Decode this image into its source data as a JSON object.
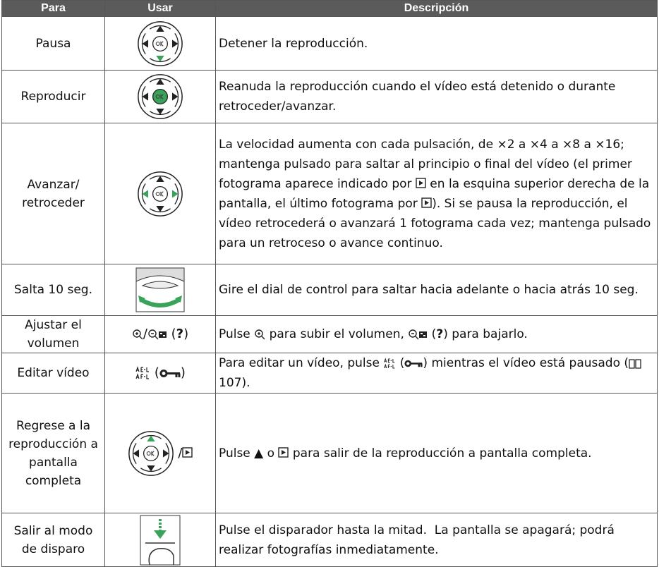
{
  "table": {
    "headers": [
      "Para",
      "Usar",
      "Descripción"
    ],
    "rows": [
      {
        "para": "Pausa",
        "description": [
          "Detener la reproducción."
        ]
      },
      {
        "para": "Reproducir",
        "description": [
          "Reanuda la reproducción cuando el vídeo está detenido o durante retroceder/avanzar."
        ]
      },
      {
        "para": "Avanzar/ retroceder",
        "description": [
          "La velocidad aumenta con cada pulsación, de ×2 a ×4 a ×8 a ×16; mantenga pulsado para saltar al principio o final del vídeo (el primer fotograma aparece indicado por ",
          " en la esquina superior derecha de la pantalla, el último fotograma por ",
          "). Si se pausa la reproducción, el vídeo retrocederá o avanzará 1 fotograma cada vez; mantenga pulsado para un retroceso o avance continuo."
        ]
      },
      {
        "para": "Salta 10 seg.",
        "description": [
          "Gire el dial de control para saltar hacia adelante o hacia atrás 10 seg."
        ]
      },
      {
        "para": "Ajustar el volumen",
        "usar": [
          "/",
          "(",
          "?",
          ")"
        ],
        "description": [
          "Pulse ",
          " para subir el volumen, ",
          " (",
          "?",
          ") para bajarlo."
        ]
      },
      {
        "para": "Editar vídeo",
        "usar": [
          "(",
          ")"
        ],
        "description": [
          "Para editar un vídeo, pulse ",
          " (",
          ") mientras el vídeo está pausado (",
          " 107)."
        ]
      },
      {
        "para": "Regrese a la reproducción a pantalla completa",
        "usar": [
          "/"
        ],
        "description": [
          "Pulse ▲ o ",
          " para salir de la reproducción a pantalla completa."
        ]
      },
      {
        "para": "Salir al modo de disparo",
        "description": [
          "Pulse el disparador hasta la mitad.  La pantalla se apagará; podrá realizar fotografías inmediatamente."
        ]
      }
    ]
  }
}
